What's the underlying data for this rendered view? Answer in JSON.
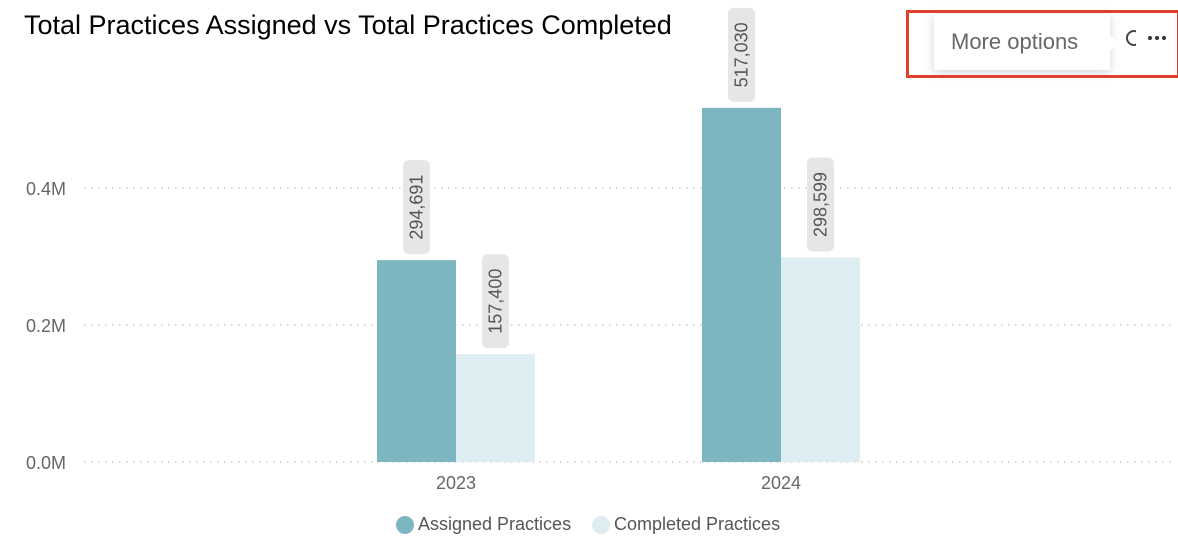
{
  "header": {
    "title": "Total Practices Assigned vs Total Practices Completed"
  },
  "visual_header": {
    "tooltip": "More options",
    "icons": {
      "focus": "focus-mode-icon",
      "more": "more-options-icon"
    }
  },
  "colors": {
    "assigned": "#7db6c0",
    "completed": "#ddedf1",
    "highlight": "#e0402d",
    "label_bg": "#e6e6e6",
    "grid": "#c8c8c8",
    "axis_text": "#666666"
  },
  "chart_data": {
    "type": "bar",
    "title": "Total Practices Assigned vs Total Practices Completed",
    "xlabel": "",
    "ylabel": "",
    "categories": [
      "2023",
      "2024"
    ],
    "series": [
      {
        "name": "Assigned Practices",
        "values": [
          294691,
          517030
        ],
        "labels": [
          "294,691",
          "517,030"
        ]
      },
      {
        "name": "Completed Practices",
        "values": [
          157400,
          298599
        ],
        "labels": [
          "157,400",
          "298,599"
        ]
      }
    ],
    "yticks": [
      {
        "value": 0,
        "label": "0.0M"
      },
      {
        "value": 200000,
        "label": "0.2M"
      },
      {
        "value": 400000,
        "label": "0.4M"
      }
    ],
    "ylim": [
      0,
      600000
    ],
    "grid": true,
    "legend": "bottom-center"
  }
}
